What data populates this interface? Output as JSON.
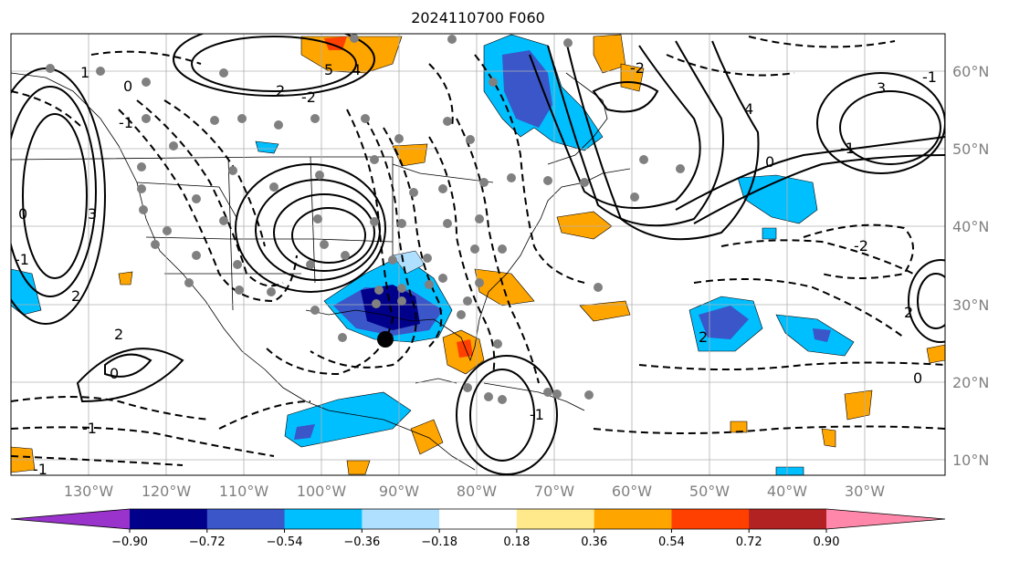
{
  "title": "2024110700 F060",
  "lon_labels": [
    "130°W",
    "120°W",
    "110°W",
    "100°W",
    "90°W",
    "80°W",
    "70°W",
    "60°W",
    "50°W",
    "40°W",
    "30°W"
  ],
  "lat_labels": [
    "60°N",
    "50°N",
    "40°N",
    "30°N",
    "20°N",
    "10°N"
  ],
  "colorbar": {
    "tick_labels": [
      "−0.90",
      "−0.72",
      "−0.54",
      "−0.36",
      "−0.18",
      "0.18",
      "0.36",
      "0.54",
      "0.72",
      "0.90"
    ],
    "colors": [
      "#9933cc",
      "#00008b",
      "#3a56c8",
      "#00bfff",
      "#b0e0ff",
      "#ffffff",
      "#ffe98a",
      "#ffa500",
      "#ff4000",
      "#b22222",
      "#ff88aa"
    ]
  },
  "contour_labels": [
    "1",
    "0",
    "-1",
    "2",
    "3",
    "-2",
    "5",
    "4",
    "0",
    "-1",
    "2",
    "4",
    "-2",
    "0",
    "-1",
    "2",
    "3",
    "-1",
    "-1",
    "2",
    "2",
    "0",
    "-1",
    "-2",
    "-1",
    "0"
  ],
  "marker": "storm-center"
}
